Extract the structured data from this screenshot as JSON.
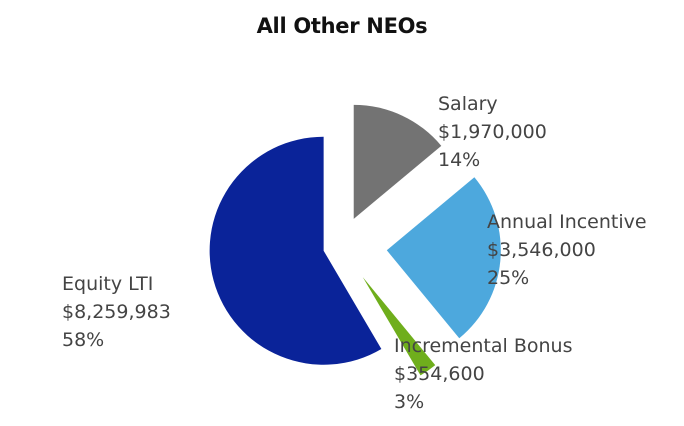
{
  "chart_data": {
    "type": "pie",
    "title": "All Other NEOs",
    "slices": [
      {
        "name": "Salary",
        "amount": "$1,970,000",
        "percent_label": "14%",
        "value": 1970000,
        "color": "#737373"
      },
      {
        "name": "Annual Incentive",
        "amount": "$3,546,000",
        "percent_label": "25%",
        "value": 3546000,
        "color": "#4DA8DD"
      },
      {
        "name": "Incremental Bonus",
        "amount": "$354,600",
        "percent_label": "3%",
        "value": 354600,
        "color": "#6FAE1C"
      },
      {
        "name": "Equity LTI",
        "amount": "$8,259,983",
        "percent_label": "58%",
        "value": 8259983,
        "color": "#0A2399"
      }
    ]
  }
}
